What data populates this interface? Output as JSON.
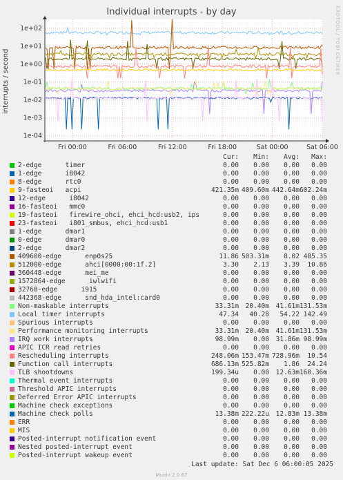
{
  "title": "Individual interrupts - by day",
  "side_credit": "RRDTOOL / TOBI OETIKER",
  "ylabel": "interrupts / second",
  "legend_header": {
    "cur": "Cur:",
    "min": "Min:",
    "avg": "Avg:",
    "max": "Max:"
  },
  "legend": [
    {
      "color": "#00cc00",
      "label": "2-edge      timer",
      "cur": "0.00",
      "min": "0.00",
      "avg": "0.00",
      "max": "0.00"
    },
    {
      "color": "#0066b3",
      "label": "1-edge      i8042",
      "cur": "0.00",
      "min": "0.00",
      "avg": "0.00",
      "max": "0.00"
    },
    {
      "color": "#ff8000",
      "label": "8-edge      rtc0",
      "cur": "0.00",
      "min": "0.00",
      "avg": "0.00",
      "max": "0.00"
    },
    {
      "color": "#ffcc00",
      "label": "9-fasteoi   acpi",
      "cur": "421.35m",
      "min": "409.60m",
      "avg": "442.64m",
      "max": "602.24m"
    },
    {
      "color": "#330099",
      "label": "12-edge      i8042",
      "cur": "0.00",
      "min": "0.00",
      "avg": "0.00",
      "max": "0.00"
    },
    {
      "color": "#990099",
      "label": "16-fasteoi   mmc0",
      "cur": "0.00",
      "min": "0.00",
      "avg": "0.00",
      "max": "0.00"
    },
    {
      "color": "#ccff00",
      "label": "19-fasteoi   firewire_ohci, ehci_hcd:usb2, ips",
      "cur": "0.00",
      "min": "0.00",
      "avg": "0.00",
      "max": "0.00"
    },
    {
      "color": "#ff0000",
      "label": "23-fasteoi   i801_smbus, ehci_hcd:usb1",
      "cur": "0.00",
      "min": "0.00",
      "avg": "0.00",
      "max": "0.00"
    },
    {
      "color": "#808080",
      "label": "1-edge      dmar1",
      "cur": "0.00",
      "min": "0.00",
      "avg": "0.00",
      "max": "0.00"
    },
    {
      "color": "#008f00",
      "label": "0-edge      dmar0",
      "cur": "0.00",
      "min": "0.00",
      "avg": "0.00",
      "max": "0.00"
    },
    {
      "color": "#00487d",
      "label": "2-edge      dmar2",
      "cur": "0.00",
      "min": "0.00",
      "avg": "0.00",
      "max": "0.00"
    },
    {
      "color": "#b35a00",
      "label": "409600-edge      enp0s25",
      "cur": "11.86",
      "min": "503.31m",
      "avg": "8.02",
      "max": "485.35"
    },
    {
      "color": "#b38f00",
      "label": "512000-edge      ahci[0000:00:1f.2]",
      "cur": "3.30",
      "min": "2.13",
      "avg": "3.39",
      "max": "10.86"
    },
    {
      "color": "#6b006b",
      "label": "360448-edge      mei_me",
      "cur": "0.00",
      "min": "0.00",
      "avg": "0.00",
      "max": "0.00"
    },
    {
      "color": "#8fb300",
      "label": "1572864-edge      iwlwifi",
      "cur": "0.00",
      "min": "0.00",
      "avg": "0.00",
      "max": "0.00"
    },
    {
      "color": "#b30000",
      "label": "32768-edge      i915",
      "cur": "0.00",
      "min": "0.00",
      "avg": "0.00",
      "max": "0.00"
    },
    {
      "color": "#bebebe",
      "label": "442368-edge      snd_hda_intel:card0",
      "cur": "0.00",
      "min": "0.00",
      "avg": "0.00",
      "max": "0.00"
    },
    {
      "color": "#80ff80",
      "label": "Non-maskable interrupts",
      "cur": "33.31m",
      "min": "20.40m",
      "avg": "41.61m",
      "max": "131.53m"
    },
    {
      "color": "#80c9ff",
      "label": "Local timer interrupts",
      "cur": "47.34",
      "min": "40.28",
      "avg": "54.22",
      "max": "142.49"
    },
    {
      "color": "#ffc080",
      "label": "Spurious interrupts",
      "cur": "0.00",
      "min": "0.00",
      "avg": "0.00",
      "max": "0.00"
    },
    {
      "color": "#ffe680",
      "label": "Performance monitoring interrupts",
      "cur": "33.31m",
      "min": "20.40m",
      "avg": "41.61m",
      "max": "131.53m"
    },
    {
      "color": "#aa80ff",
      "label": "IRQ work interrupts",
      "cur": "98.99m",
      "min": "0.00",
      "avg": "31.86m",
      "max": "98.99m"
    },
    {
      "color": "#ee00cc",
      "label": "APIC ICR read retries",
      "cur": "0.00",
      "min": "0.00",
      "avg": "0.00",
      "max": "0.00"
    },
    {
      "color": "#ff8080",
      "label": "Rescheduling interrupts",
      "cur": "248.06m",
      "min": "153.47m",
      "avg": "728.96m",
      "max": "10.54"
    },
    {
      "color": "#666600",
      "label": "Function call interrupts",
      "cur": "686.13m",
      "min": "525.82m",
      "avg": "1.86",
      "max": "24.24"
    },
    {
      "color": "#ffbfff",
      "label": "TLB shootdowns",
      "cur": "199.34u",
      "min": "0.00",
      "avg": "12.63m",
      "max": "160.36m"
    },
    {
      "color": "#00ffcc",
      "label": "Thermal event interrupts",
      "cur": "0.00",
      "min": "0.00",
      "avg": "0.00",
      "max": "0.00"
    },
    {
      "color": "#cc6699",
      "label": "Threshold APIC interrupts",
      "cur": "0.00",
      "min": "0.00",
      "avg": "0.00",
      "max": "0.00"
    },
    {
      "color": "#999900",
      "label": "Deferred Error APIC interrupts",
      "cur": "0.00",
      "min": "0.00",
      "avg": "0.00",
      "max": "0.00"
    },
    {
      "color": "#00cc00",
      "label": "Machine check exceptions",
      "cur": "0.00",
      "min": "0.00",
      "avg": "0.00",
      "max": "0.00"
    },
    {
      "color": "#0066b3",
      "label": "Machine check polls",
      "cur": "13.38m",
      "min": "222.22u",
      "avg": "12.83m",
      "max": "13.38m"
    },
    {
      "color": "#ff8000",
      "label": "ERR",
      "cur": "0.00",
      "min": "0.00",
      "avg": "0.00",
      "max": "0.00"
    },
    {
      "color": "#ffcc00",
      "label": "MIS",
      "cur": "0.00",
      "min": "0.00",
      "avg": "0.00",
      "max": "0.00"
    },
    {
      "color": "#330099",
      "label": "Posted-interrupt notification event",
      "cur": "0.00",
      "min": "0.00",
      "avg": "0.00",
      "max": "0.00"
    },
    {
      "color": "#990099",
      "label": "Nested posted-interrupt event",
      "cur": "0.00",
      "min": "0.00",
      "avg": "0.00",
      "max": "0.00"
    },
    {
      "color": "#ccff00",
      "label": "Posted-interrupt wakeup event",
      "cur": "0.00",
      "min": "0.00",
      "avg": "0.00",
      "max": "0.00"
    }
  ],
  "last_update": "Last update: Sat Dec  6 06:00:05 2025",
  "footer": "Munin 2.0.67",
  "chart_data": {
    "type": "line",
    "scale": "log",
    "ylim": [
      5e-05,
      300
    ],
    "yticks": [
      {
        "label": "1e+02",
        "value": 100
      },
      {
        "label": "1e+01",
        "value": 10
      },
      {
        "label": "1e+00",
        "value": 1
      },
      {
        "label": "1e-01",
        "value": 0.1
      },
      {
        "label": "1e-02",
        "value": 0.01
      },
      {
        "label": "1e-03",
        "value": 0.001
      },
      {
        "label": "1e-04",
        "value": 0.0001
      }
    ],
    "xticks": [
      "Fri 00:00",
      "Fri 06:00",
      "Fri 12:00",
      "Fri 18:00",
      "Sat 00:00",
      "Sat 06:00"
    ],
    "grid": true,
    "series": [
      {
        "name": "Local timer interrupts",
        "color": "#80c9ff",
        "cur": 47.34,
        "min": 40.28,
        "avg": 54.22,
        "max": 142.49
      },
      {
        "name": "409600-edge      enp0s25",
        "color": "#b35a00",
        "cur": 11.86,
        "min": 0.50331,
        "avg": 8.02,
        "max": 485.35
      },
      {
        "name": "512000-edge      ahci[0000:00:1f.2]",
        "color": "#b38f00",
        "cur": 3.3,
        "min": 2.13,
        "avg": 3.39,
        "max": 10.86
      },
      {
        "name": "Function call interrupts",
        "color": "#666600",
        "cur": 0.68613,
        "min": 0.52582,
        "avg": 1.86,
        "max": 24.24
      },
      {
        "name": "Rescheduling interrupts",
        "color": "#ff8080",
        "cur": 0.24806,
        "min": 0.15347,
        "avg": 0.72896,
        "max": 10.54
      },
      {
        "name": "9-fasteoi   acpi",
        "color": "#ffcc00",
        "cur": 0.42135,
        "min": 0.4096,
        "avg": 0.44264,
        "max": 0.60224
      },
      {
        "name": "IRQ work interrupts",
        "color": "#aa80ff",
        "cur": 0.09899,
        "min": 0,
        "avg": 0.03186,
        "max": 0.09899
      },
      {
        "name": "Non-maskable interrupts",
        "color": "#80ff80",
        "cur": 0.03331,
        "min": 0.0204,
        "avg": 0.04161,
        "max": 0.13153
      },
      {
        "name": "Performance monitoring interrupts",
        "color": "#ffe680",
        "cur": 0.03331,
        "min": 0.0204,
        "avg": 0.04161,
        "max": 0.13153
      },
      {
        "name": "Machine check polls",
        "color": "#0066b3",
        "cur": 0.01338,
        "min": 0.00022222,
        "avg": 0.01283,
        "max": 0.01338
      },
      {
        "name": "TLB shootdowns",
        "color": "#ffbfff",
        "cur": 0.00019934,
        "min": 0,
        "avg": 0.01263,
        "max": 0.16036
      }
    ]
  }
}
